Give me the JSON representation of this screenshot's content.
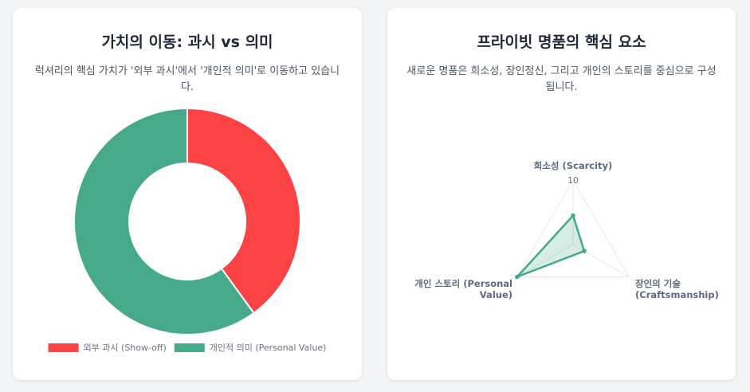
{
  "cards": [
    {
      "title": "가치의 이동: 과시 vs 의미",
      "description": "럭셔리의 핵심 가치가 '외부 과시'에서 '개인적 의미'로 이동하고 있습니다."
    },
    {
      "title": "프라이빗 명품의 핵심 요소",
      "description": "새로운 명품은 희소성, 장인정신, 그리고 개인의 스토리를 중심으로 구성됩니다."
    }
  ],
  "chart_data": [
    {
      "type": "doughnut",
      "categories": [
        "외부 과시 (Show-off)",
        "개인적 의미 (Personal Value)"
      ],
      "values": [
        40,
        60
      ],
      "colors": [
        "#fb4245",
        "#45a98a"
      ],
      "legend": "bottom"
    },
    {
      "type": "radar",
      "axes": [
        {
          "label_lines": [
            "희소성 (Scarcity)"
          ]
        },
        {
          "label_lines": [
            "장인의 기술",
            "(Craftsmanship)"
          ]
        },
        {
          "label_lines": [
            "개인 스토리 (Personal",
            "Value)"
          ]
        }
      ],
      "values": [
        4.5,
        2,
        10
      ],
      "range": [
        0,
        10
      ],
      "tick_labels": [
        "10"
      ],
      "color": "#45a98a"
    }
  ]
}
